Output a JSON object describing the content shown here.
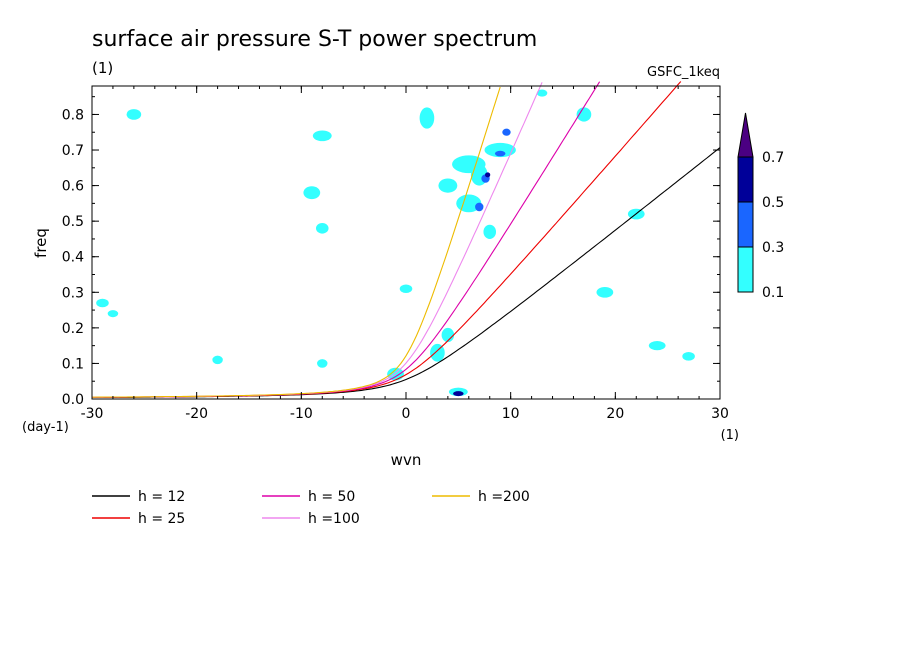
{
  "chart_data": {
    "type": "contour",
    "title": "surface air pressure S-T power spectrum",
    "subtitle_left": "(1)",
    "subtitle_right": "GSFC_1keq",
    "xlabel": "wvn",
    "ylabel": "freq",
    "x_unit_label": "(1)",
    "y_unit_label": "(day-1)",
    "xlim": [
      -30,
      30
    ],
    "ylim": [
      0,
      0.88
    ],
    "xticks": [
      "-30",
      "-20",
      "-10",
      "0",
      "10",
      "20",
      "30"
    ],
    "yticks": [
      "0.0",
      "0.1",
      "0.2",
      "0.3",
      "0.4",
      "0.5",
      "0.6",
      "0.7",
      "0.8"
    ],
    "colorbar": {
      "levels": [
        "0.1",
        "0.3",
        "0.5",
        "0.7"
      ],
      "colors": [
        "#33ffff",
        "#1a66ff",
        "#000099",
        "#4b0082"
      ]
    },
    "dispersion_curves": [
      {
        "name": "h = 12",
        "h": 12,
        "color": "#000000"
      },
      {
        "name": "h = 25",
        "h": 25,
        "color": "#ee0000"
      },
      {
        "name": "h = 50",
        "h": 50,
        "color": "#dd00aa"
      },
      {
        "name": "h =100",
        "h": 100,
        "color": "#ee88ee"
      },
      {
        "name": "h =200",
        "h": 200,
        "color": "#eebb00"
      }
    ],
    "contour_blobs": [
      {
        "x": 5,
        "y": 0.02,
        "rx": 0.9,
        "ry": 0.012,
        "level": 0
      },
      {
        "x": 5,
        "y": 0.015,
        "rx": 0.5,
        "ry": 0.007,
        "level": 2
      },
      {
        "x": -1,
        "y": 0.07,
        "rx": 0.8,
        "ry": 0.018,
        "level": 0
      },
      {
        "x": 3,
        "y": 0.13,
        "rx": 0.7,
        "ry": 0.025,
        "level": 0
      },
      {
        "x": 4,
        "y": 0.18,
        "rx": 0.6,
        "ry": 0.02,
        "level": 0
      },
      {
        "x": 2,
        "y": 0.79,
        "rx": 0.7,
        "ry": 0.03,
        "level": 0
      },
      {
        "x": 6,
        "y": 0.66,
        "rx": 1.6,
        "ry": 0.025,
        "level": 0
      },
      {
        "x": 4,
        "y": 0.6,
        "rx": 0.9,
        "ry": 0.02,
        "level": 0
      },
      {
        "x": 7,
        "y": 0.63,
        "rx": 0.8,
        "ry": 0.03,
        "level": 0
      },
      {
        "x": 7.6,
        "y": 0.62,
        "rx": 0.4,
        "ry": 0.012,
        "level": 1
      },
      {
        "x": 7.8,
        "y": 0.63,
        "rx": 0.25,
        "ry": 0.007,
        "level": 2
      },
      {
        "x": 6,
        "y": 0.55,
        "rx": 1.2,
        "ry": 0.025,
        "level": 0
      },
      {
        "x": 7,
        "y": 0.54,
        "rx": 0.4,
        "ry": 0.012,
        "level": 1
      },
      {
        "x": 9,
        "y": 0.7,
        "rx": 1.5,
        "ry": 0.02,
        "level": 0
      },
      {
        "x": 9,
        "y": 0.69,
        "rx": 0.5,
        "ry": 0.008,
        "level": 1
      },
      {
        "x": 9.6,
        "y": 0.75,
        "rx": 0.4,
        "ry": 0.01,
        "level": 1
      },
      {
        "x": 8,
        "y": 0.47,
        "rx": 0.6,
        "ry": 0.02,
        "level": 0
      },
      {
        "x": -8,
        "y": 0.74,
        "rx": 0.9,
        "ry": 0.015,
        "level": 0
      },
      {
        "x": -26,
        "y": 0.8,
        "rx": 0.7,
        "ry": 0.015,
        "level": 0
      },
      {
        "x": -9,
        "y": 0.58,
        "rx": 0.8,
        "ry": 0.018,
        "level": 0
      },
      {
        "x": 17,
        "y": 0.8,
        "rx": 0.7,
        "ry": 0.02,
        "level": 0
      },
      {
        "x": 19,
        "y": 0.3,
        "rx": 0.8,
        "ry": 0.015,
        "level": 0
      },
      {
        "x": -8,
        "y": 0.48,
        "rx": 0.6,
        "ry": 0.015,
        "level": 0
      },
      {
        "x": -29,
        "y": 0.27,
        "rx": 0.6,
        "ry": 0.012,
        "level": 0
      },
      {
        "x": 24,
        "y": 0.15,
        "rx": 0.8,
        "ry": 0.013,
        "level": 0
      },
      {
        "x": 27,
        "y": 0.12,
        "rx": 0.6,
        "ry": 0.012,
        "level": 0
      },
      {
        "x": 0,
        "y": 0.31,
        "rx": 0.6,
        "ry": 0.012,
        "level": 0
      },
      {
        "x": -18,
        "y": 0.11,
        "rx": 0.5,
        "ry": 0.012,
        "level": 0
      },
      {
        "x": -8,
        "y": 0.1,
        "rx": 0.5,
        "ry": 0.012,
        "level": 0
      },
      {
        "x": 22,
        "y": 0.52,
        "rx": 0.8,
        "ry": 0.015,
        "level": 0
      },
      {
        "x": 13,
        "y": 0.86,
        "rx": 0.5,
        "ry": 0.01,
        "level": 0
      },
      {
        "x": -28,
        "y": 0.24,
        "rx": 0.5,
        "ry": 0.01,
        "level": 0
      }
    ],
    "legend_position": "bottom-left"
  }
}
